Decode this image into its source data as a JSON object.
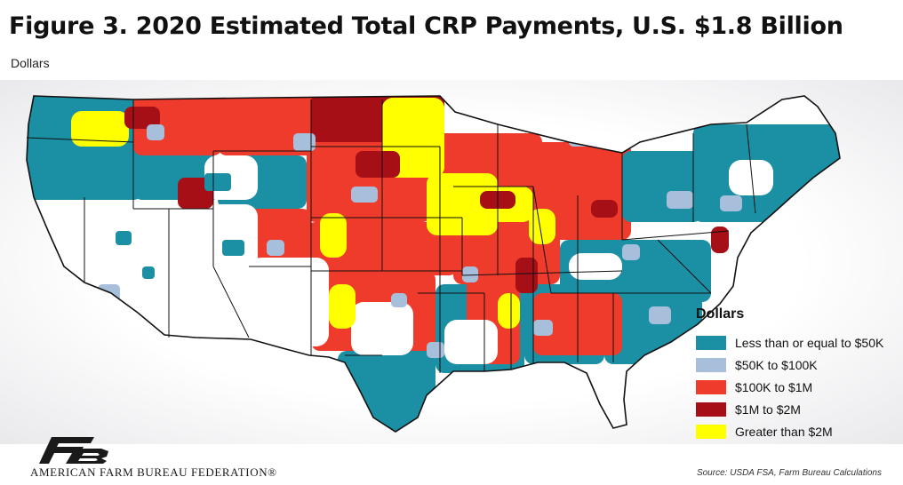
{
  "title": "Figure 3. 2020 Estimated Total CRP Payments, U.S. $1.8 Billion",
  "subtitle": "Dollars",
  "legend": {
    "title": "Dollars",
    "items": [
      {
        "label": "Less than or equal to $50K",
        "color": "#1b8fa3"
      },
      {
        "label": "$50K to $100K",
        "color": "#a8bfdc"
      },
      {
        "label": "$100K to $1M",
        "color": "#ef3b2c"
      },
      {
        "label": "$1M to $2M",
        "color": "#a50f15"
      },
      {
        "label": "Greater than $2M",
        "color": "#ffff00"
      }
    ]
  },
  "footer": {
    "organization": "AMERICAN FARM BUREAU FEDERATION®",
    "logo_text": "FB",
    "logo_color": "#1a1a1a"
  },
  "source": "Source: USDA FSA, Farm Bureau Calculations",
  "map_colors": {
    "land": "#ffffff",
    "border": "#111111"
  }
}
